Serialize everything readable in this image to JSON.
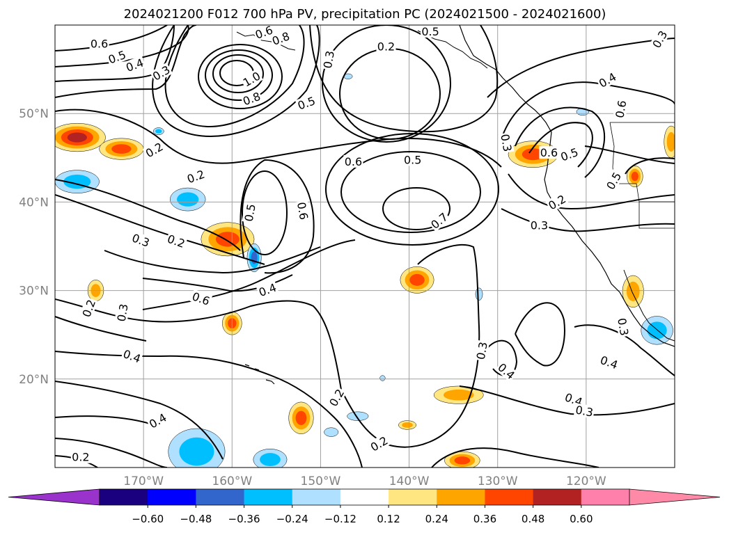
{
  "chart_data": {
    "type": "map",
    "title": "2024021200 F012 700 hPa PV, precipitation PC (2024021500 - 2024021600)",
    "map": {
      "lon_range": [
        180,
        110
      ],
      "lat_range": [
        10,
        60
      ],
      "lon_ticks": [
        {
          "value": 170,
          "label": "170°W"
        },
        {
          "value": 160,
          "label": "160°W"
        },
        {
          "value": 150,
          "label": "150°W"
        },
        {
          "value": 140,
          "label": "140°W"
        },
        {
          "value": 130,
          "label": "130°W"
        },
        {
          "value": 120,
          "label": "120°W"
        }
      ],
      "lat_ticks": [
        {
          "value": 50,
          "label": "50°N"
        },
        {
          "value": 40,
          "label": "40°N"
        },
        {
          "value": 30,
          "label": "30°N"
        },
        {
          "value": 20,
          "label": "20°N"
        }
      ],
      "grid": true
    },
    "contour_labels": [
      {
        "text": "0.6",
        "lon": 175,
        "lat": 57.9,
        "rot": 0
      },
      {
        "text": "0.5",
        "lon": 173,
        "lat": 56.4,
        "rot": -20
      },
      {
        "text": "0.4",
        "lon": 171,
        "lat": 55.5,
        "rot": -20
      },
      {
        "text": "0.3",
        "lon": 168,
        "lat": 54.6,
        "rot": -30
      },
      {
        "text": "0.6",
        "lon": 156.4,
        "lat": 59.2,
        "rot": -20
      },
      {
        "text": "0.8",
        "lon": 154.5,
        "lat": 58.5,
        "rot": -20
      },
      {
        "text": "1.0",
        "lon": 157.8,
        "lat": 53.9,
        "rot": -30
      },
      {
        "text": "0.8",
        "lon": 157.8,
        "lat": 51.7,
        "rot": -20
      },
      {
        "text": "0.5",
        "lon": 151.6,
        "lat": 51.2,
        "rot": -20
      },
      {
        "text": "0.3",
        "lon": 149.1,
        "lat": 56.1,
        "rot": -80
      },
      {
        "text": "0.2",
        "lon": 142.6,
        "lat": 57.6,
        "rot": 0
      },
      {
        "text": "0.5",
        "lon": 137.6,
        "lat": 59.3,
        "rot": 0
      },
      {
        "text": "0.3",
        "lon": 111.7,
        "lat": 58.4,
        "rot": -60
      },
      {
        "text": "0.4",
        "lon": 117.6,
        "lat": 53.8,
        "rot": -30
      },
      {
        "text": "0.6",
        "lon": 116.1,
        "lat": 50.5,
        "rot": -80
      },
      {
        "text": "0.2",
        "lon": 168.8,
        "lat": 45.9,
        "rot": -30
      },
      {
        "text": "0.2",
        "lon": 164.1,
        "lat": 42.9,
        "rot": -20
      },
      {
        "text": "0.3",
        "lon": 170.3,
        "lat": 35.7,
        "rot": 20
      },
      {
        "text": "0.2",
        "lon": 166.3,
        "lat": 35.6,
        "rot": 20
      },
      {
        "text": "0.5",
        "lon": 158.0,
        "lat": 38.8,
        "rot": -80
      },
      {
        "text": "0.6",
        "lon": 152.0,
        "lat": 39.0,
        "rot": 80
      },
      {
        "text": "0.6",
        "lon": 146.3,
        "lat": 44.6,
        "rot": 0
      },
      {
        "text": "0.5",
        "lon": 139.6,
        "lat": 44.8,
        "rot": 0
      },
      {
        "text": "0.7",
        "lon": 136.6,
        "lat": 37.9,
        "rot": -40
      },
      {
        "text": "0.3",
        "lon": 129.0,
        "lat": 46.7,
        "rot": 80
      },
      {
        "text": "0.6",
        "lon": 124.2,
        "lat": 45.6,
        "rot": 0
      },
      {
        "text": "0.5",
        "lon": 121.9,
        "lat": 45.4,
        "rot": -20
      },
      {
        "text": "0.5",
        "lon": 116.9,
        "lat": 42.4,
        "rot": -60
      },
      {
        "text": "0.2",
        "lon": 123.3,
        "lat": 40.0,
        "rot": -30
      },
      {
        "text": "0.3",
        "lon": 125.3,
        "lat": 37.4,
        "rot": 0
      },
      {
        "text": "0.6",
        "lon": 163.5,
        "lat": 29.1,
        "rot": 20
      },
      {
        "text": "0.4",
        "lon": 156.0,
        "lat": 30.1,
        "rot": -20
      },
      {
        "text": "0.2",
        "lon": 176.2,
        "lat": 28.0,
        "rot": -70
      },
      {
        "text": "0.3",
        "lon": 172.4,
        "lat": 27.5,
        "rot": -80
      },
      {
        "text": "0.4",
        "lon": 171.3,
        "lat": 22.6,
        "rot": 20
      },
      {
        "text": "0.2",
        "lon": 148.2,
        "lat": 17.9,
        "rot": -60
      },
      {
        "text": "0.2",
        "lon": 143.4,
        "lat": 12.7,
        "rot": -30
      },
      {
        "text": "0.4",
        "lon": 168.4,
        "lat": 15.3,
        "rot": -30
      },
      {
        "text": "0.2",
        "lon": 177.1,
        "lat": 11.2,
        "rot": 0
      },
      {
        "text": "0.3",
        "lon": 131.8,
        "lat": 23.2,
        "rot": -80
      },
      {
        "text": "0.4",
        "lon": 129.0,
        "lat": 20.9,
        "rot": 40
      },
      {
        "text": "0.3",
        "lon": 115.8,
        "lat": 25.9,
        "rot": 80
      },
      {
        "text": "0.4",
        "lon": 117.4,
        "lat": 21.9,
        "rot": 20
      },
      {
        "text": "0.4",
        "lon": 121.4,
        "lat": 17.7,
        "rot": 20
      },
      {
        "text": "0.3",
        "lon": 120.2,
        "lat": 16.4,
        "rot": 10
      }
    ],
    "precip_patches": [
      {
        "lon": 177.5,
        "lat": 47.3,
        "rx": 3.2,
        "ry": 1.6,
        "value": 0.5
      },
      {
        "lon": 172.5,
        "lat": 46.0,
        "rx": 2.5,
        "ry": 1.2,
        "value": 0.36
      },
      {
        "lon": 168.3,
        "lat": 48.0,
        "rx": 0.6,
        "ry": 0.4,
        "value": -0.24
      },
      {
        "lon": 177.5,
        "lat": 42.3,
        "rx": 2.5,
        "ry": 1.3,
        "value": -0.3
      },
      {
        "lon": 165.0,
        "lat": 40.3,
        "rx": 2.0,
        "ry": 1.3,
        "value": -0.3
      },
      {
        "lon": 160.5,
        "lat": 35.8,
        "rx": 3.0,
        "ry": 1.9,
        "value": 0.45
      },
      {
        "lon": 157.5,
        "lat": 33.7,
        "rx": 0.8,
        "ry": 1.6,
        "value": -0.42
      },
      {
        "lon": 175.4,
        "lat": 30.0,
        "rx": 0.9,
        "ry": 1.2,
        "value": 0.3
      },
      {
        "lon": 160.0,
        "lat": 26.3,
        "rx": 1.1,
        "ry": 1.3,
        "value": 0.4
      },
      {
        "lon": 139.1,
        "lat": 31.2,
        "rx": 1.9,
        "ry": 1.5,
        "value": 0.42
      },
      {
        "lon": 132.1,
        "lat": 29.6,
        "rx": 0.4,
        "ry": 0.7,
        "value": -0.2
      },
      {
        "lon": 146.9,
        "lat": 54.2,
        "rx": 0.5,
        "ry": 0.3,
        "value": -0.2
      },
      {
        "lon": 126.0,
        "lat": 45.4,
        "rx": 2.8,
        "ry": 1.5,
        "value": 0.45
      },
      {
        "lon": 120.4,
        "lat": 50.2,
        "rx": 0.7,
        "ry": 0.4,
        "value": -0.2
      },
      {
        "lon": 114.5,
        "lat": 42.9,
        "rx": 0.9,
        "ry": 1.2,
        "value": 0.42
      },
      {
        "lon": 110.4,
        "lat": 46.8,
        "rx": 0.8,
        "ry": 1.8,
        "value": 0.3
      },
      {
        "lon": 114.7,
        "lat": 29.9,
        "rx": 1.2,
        "ry": 1.8,
        "value": 0.3
      },
      {
        "lon": 112.0,
        "lat": 25.5,
        "rx": 1.8,
        "ry": 1.6,
        "value": -0.3
      },
      {
        "lon": 134.4,
        "lat": 18.2,
        "rx": 2.8,
        "ry": 1.0,
        "value": 0.3
      },
      {
        "lon": 152.2,
        "lat": 15.6,
        "rx": 1.4,
        "ry": 1.8,
        "value": 0.45
      },
      {
        "lon": 148.8,
        "lat": 14.0,
        "rx": 0.8,
        "ry": 0.5,
        "value": -0.2
      },
      {
        "lon": 145.8,
        "lat": 15.8,
        "rx": 1.2,
        "ry": 0.5,
        "value": -0.2
      },
      {
        "lon": 140.2,
        "lat": 14.8,
        "rx": 1.0,
        "ry": 0.5,
        "value": 0.24
      },
      {
        "lon": 143.0,
        "lat": 20.1,
        "rx": 0.3,
        "ry": 0.3,
        "value": -0.2
      },
      {
        "lon": 164.0,
        "lat": 11.8,
        "rx": 3.2,
        "ry": 2.6,
        "value": -0.3
      },
      {
        "lon": 155.7,
        "lat": 10.9,
        "rx": 1.9,
        "ry": 1.2,
        "value": -0.3
      },
      {
        "lon": 134.0,
        "lat": 10.8,
        "rx": 2.0,
        "ry": 1.0,
        "value": 0.4
      }
    ],
    "colorbar": {
      "ticks": [
        "−0.60",
        "−0.48",
        "−0.36",
        "−0.24",
        "−0.12",
        "0.12",
        "0.24",
        "0.36",
        "0.48",
        "0.60"
      ],
      "bounds": [
        -0.6,
        -0.48,
        -0.36,
        -0.24,
        -0.12,
        0.12,
        0.24,
        0.36,
        0.48,
        0.6
      ],
      "colors": [
        "#1a007f",
        "#0000ff",
        "#3366cc",
        "#00bfff",
        "#b0e0ff",
        "#ffffff",
        "#ffe680",
        "#ffa500",
        "#ff4500",
        "#b22222",
        "#ff80aa"
      ],
      "extend_low": "#9933cc",
      "extend_high": "#ff8aa8"
    }
  }
}
